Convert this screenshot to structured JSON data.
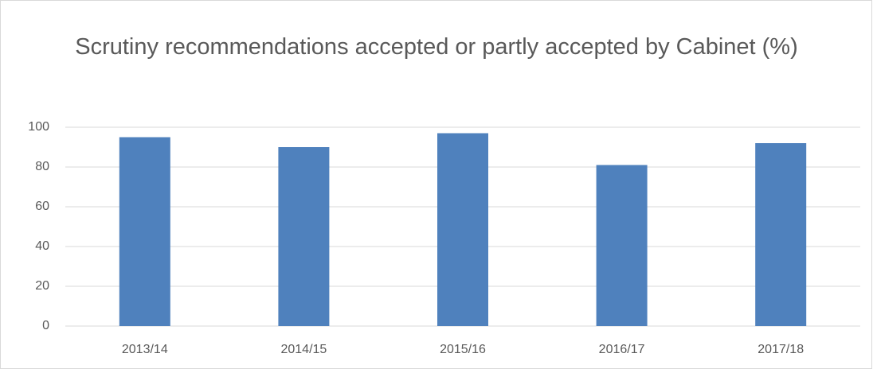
{
  "chart_data": {
    "type": "bar",
    "title": "Scrutiny recommendations accepted or partly accepted by Cabinet (%)",
    "categories": [
      "2013/14",
      "2014/15",
      "2015/16",
      "2016/17",
      "2017/18"
    ],
    "values": [
      95,
      90,
      97,
      81,
      92
    ],
    "color": "#4f81bd",
    "ylim": [
      0,
      100
    ],
    "yticks": [
      0,
      20,
      40,
      60,
      80,
      100
    ],
    "grid": true
  }
}
